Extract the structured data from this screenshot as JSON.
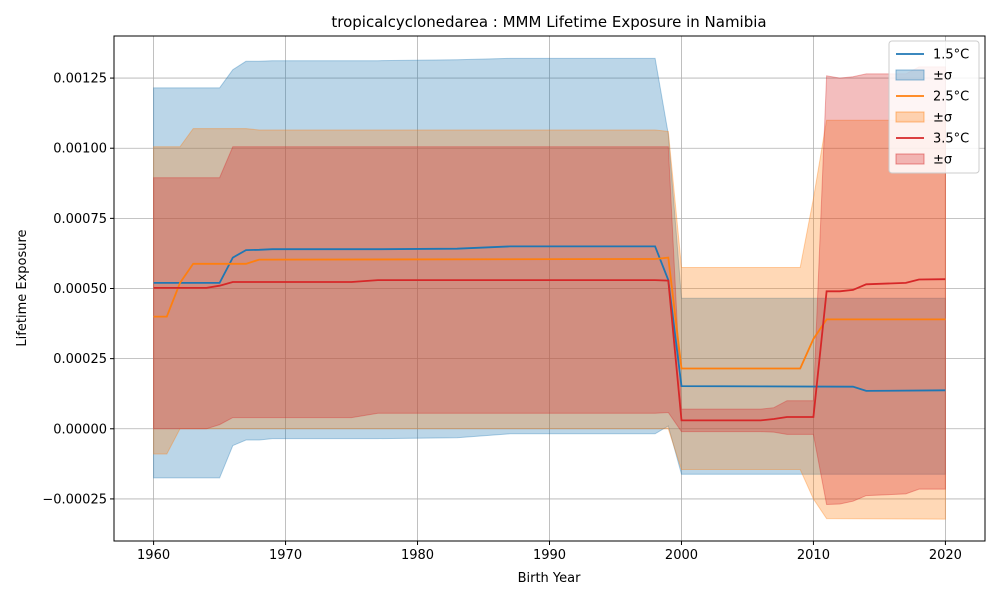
{
  "chart_data": {
    "type": "line",
    "title": "tropicalcyclonedarea : MMM Lifetime Exposure in Namibia",
    "xlabel": "Birth Year",
    "ylabel": "Lifetime Exposure",
    "xlim": [
      1957,
      2023
    ],
    "ylim": [
      -0.0004,
      0.0014
    ],
    "xticks": [
      1960,
      1970,
      1980,
      1990,
      2000,
      2010,
      2020
    ],
    "xtick_labels": [
      "1960",
      "1970",
      "1980",
      "1990",
      "2000",
      "2010",
      "2020"
    ],
    "yticks": [
      -0.00025,
      0,
      0.00025,
      0.0005,
      0.00075,
      0.001,
      0.00125
    ],
    "ytick_labels": [
      "−0.00025",
      "0.00000",
      "0.00025",
      "0.00050",
      "0.00075",
      "0.00100",
      "0.00125"
    ],
    "grid": true,
    "legend_position": "top-right",
    "legend": [
      "1.5°C",
      "±σ",
      "2.5°C",
      "±σ",
      "3.5°C",
      "±σ"
    ],
    "series": [
      {
        "name": "1.5°C",
        "band_label": "±σ",
        "color": "#1f77b4",
        "x": [
          1960,
          1965,
          1966,
          1967,
          1968,
          1969,
          1977,
          1983,
          1987,
          1998,
          1999,
          2000,
          2013,
          2014,
          2020
        ],
        "values": [
          0.00052,
          0.00052,
          0.00061,
          0.000637,
          0.000638,
          0.00064,
          0.00064,
          0.000642,
          0.00065,
          0.00065,
          0.00053,
          0.000152,
          0.00015,
          0.000135,
          0.000137
        ],
        "upper": [
          0.001215,
          0.001215,
          0.00128,
          0.00131,
          0.00131,
          0.001312,
          0.001312,
          0.001315,
          0.00132,
          0.00132,
          0.00105,
          0.000465,
          0.000465,
          0.000465,
          0.000465
        ],
        "lower": [
          -0.000175,
          -0.000175,
          -6e-05,
          -4e-05,
          -4e-05,
          -3.5e-05,
          -3.5e-05,
          -3.2e-05,
          -1.8e-05,
          -1.8e-05,
          1e-05,
          -0.000162,
          -0.000162,
          -0.000162,
          -0.000162
        ]
      },
      {
        "name": "2.5°C",
        "band_label": "±σ",
        "color": "#ff7f0e",
        "x": [
          1960,
          1961,
          1962,
          1963,
          1967,
          1968,
          1998,
          1999,
          2000,
          2009,
          2010,
          2011,
          2020
        ],
        "values": [
          0.0004,
          0.0004,
          0.00052,
          0.000588,
          0.000588,
          0.000603,
          0.000605,
          0.00061,
          0.000215,
          0.000215,
          0.00032,
          0.00039,
          0.00039
        ],
        "upper": [
          0.001005,
          0.001005,
          0.001005,
          0.00107,
          0.00107,
          0.001065,
          0.001065,
          0.00106,
          0.000575,
          0.000575,
          0.00082,
          0.0011,
          0.0011
        ],
        "lower": [
          -9e-05,
          -9e-05,
          0.0,
          0.0,
          0.0,
          0.0,
          0.0,
          0.0,
          -0.000145,
          -0.000145,
          -0.00025,
          -0.00032,
          -0.000322
        ]
      },
      {
        "name": "3.5°C",
        "band_label": "±σ",
        "color": "#d62728",
        "x": [
          1960,
          1964,
          1965,
          1966,
          1975,
          1977,
          1998,
          1999,
          2000,
          2006,
          2007,
          2008,
          2010,
          2011,
          2012,
          2013,
          2014,
          2017,
          2018,
          2020
        ],
        "values": [
          0.000502,
          0.000502,
          0.00051,
          0.000523,
          0.000523,
          0.00053,
          0.00053,
          0.000528,
          3e-05,
          3e-05,
          3.5e-05,
          4.2e-05,
          4.2e-05,
          0.00049,
          0.00049,
          0.000495,
          0.000515,
          0.00052,
          0.000532,
          0.000533
        ],
        "upper": [
          0.000895,
          0.000895,
          0.000895,
          0.001005,
          0.001005,
          0.001005,
          0.001005,
          0.001005,
          7e-05,
          7e-05,
          7.5e-05,
          0.0001,
          0.0001,
          0.001258,
          0.00125,
          0.001255,
          0.001265,
          0.001265,
          0.00129,
          0.00129
        ],
        "lower": [
          0.0,
          0.0,
          1.5e-05,
          4e-05,
          4e-05,
          5.5e-05,
          5.5e-05,
          5.8e-05,
          -1e-05,
          -1e-05,
          -1.2e-05,
          -2e-05,
          -2e-05,
          -0.00027,
          -0.000268,
          -0.000258,
          -0.000238,
          -0.000232,
          -0.000215,
          -0.000215
        ]
      }
    ]
  }
}
